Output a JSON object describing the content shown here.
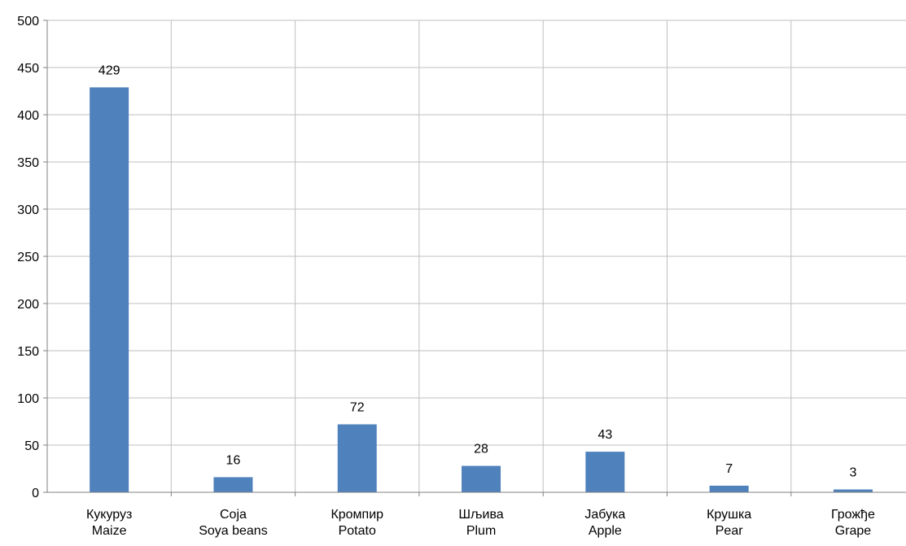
{
  "chart_data": {
    "type": "bar",
    "title": "",
    "xlabel": "",
    "ylabel": "",
    "ylim": [
      0,
      500
    ],
    "ytick_step": 50,
    "grid": {
      "horizontal": true,
      "vertical": true
    },
    "legend": "none",
    "bar_color": "#4f81bd",
    "grid_color": "#bfbfbf",
    "axis_color": "#808080",
    "categories": [
      {
        "line1": "Кукуруз",
        "line2": "Maize"
      },
      {
        "line1": "Соја",
        "line2": "Soya beans"
      },
      {
        "line1": "Кромпир",
        "line2": "Potato"
      },
      {
        "line1": "Шљива",
        "line2": "Plum"
      },
      {
        "line1": "Јабука",
        "line2": "Apple"
      },
      {
        "line1": "Крушка",
        "line2": "Pear"
      },
      {
        "line1": "Грожђе",
        "line2": "Grape"
      }
    ],
    "values": [
      429,
      16,
      72,
      28,
      43,
      7,
      3
    ]
  }
}
